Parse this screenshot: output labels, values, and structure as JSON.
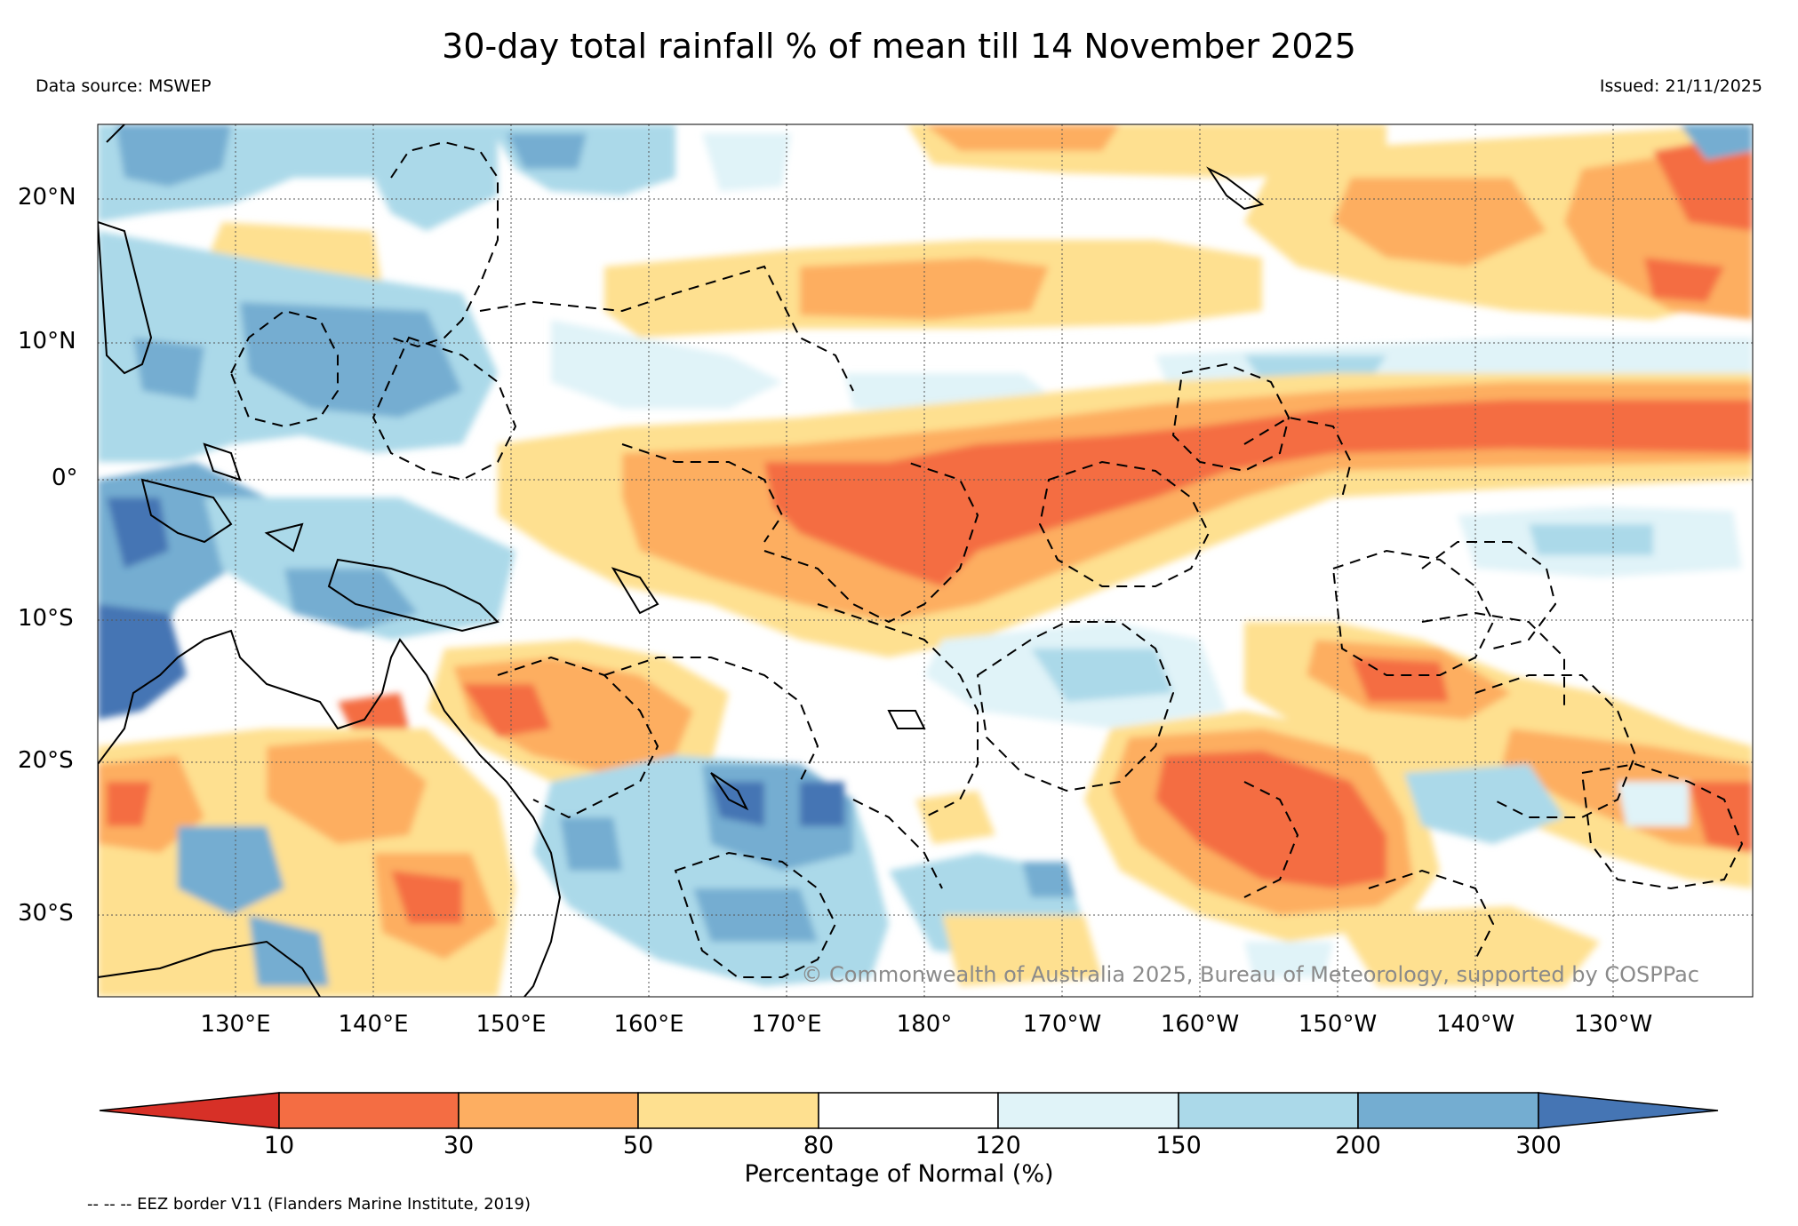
{
  "title": "30-day total rainfall % of mean till 14 November 2025",
  "data_source": "Data source: MSWEP",
  "issued": "Issued: 21/11/2025",
  "copyright": "© Commonwealth of Australia 2025, Bureau of Meteorology, supported by COSPPac",
  "footnote": "-- -- -- EEZ border V11 (Flanders Marine Institute, 2019)",
  "lat_ticks": [
    "20°N",
    "10°N",
    "0°",
    "10°S",
    "20°S",
    "30°S"
  ],
  "lon_ticks": [
    "130°E",
    "140°E",
    "150°E",
    "160°E",
    "170°E",
    "180°",
    "170°W",
    "160°W",
    "150°W",
    "140°W",
    "130°W"
  ],
  "colorbar": {
    "title": "Percentage of Normal (%)",
    "labels": [
      "10",
      "30",
      "50",
      "80",
      "120",
      "150",
      "200",
      "300"
    ],
    "colors": {
      "lt10": "#d73027",
      "10-30": "#f46d43",
      "30-50": "#fdae61",
      "50-80": "#fee090",
      "80-120": "#ffffff",
      "120-150": "#e0f3f8",
      "150-200": "#abd9e9",
      "200-300": "#74add1",
      "gt300": "#4575b4"
    }
  }
}
